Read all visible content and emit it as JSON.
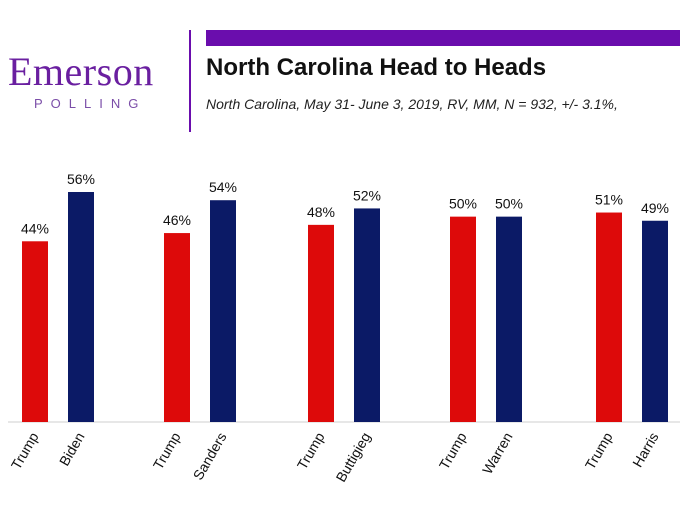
{
  "logo": {
    "word": "Emerson",
    "sub": "POLLING"
  },
  "header": {
    "title": "North Carolina Head to Heads",
    "subtitle": "North Carolina, May 31- June 3, 2019, RV, MM, N = 932,  +/- 3.1%,"
  },
  "colors": {
    "accent": "#6a0dad",
    "trump": "#dd0a0a",
    "dem": "#0b1a66"
  },
  "chart_data": {
    "type": "bar",
    "ylim": [
      0,
      60
    ],
    "grid": false,
    "groups": [
      {
        "bars": [
          {
            "label": "Trump",
            "value": 44,
            "text": "44%",
            "party": "trump"
          },
          {
            "label": "Biden",
            "value": 56,
            "text": "56%",
            "party": "dem"
          }
        ]
      },
      {
        "bars": [
          {
            "label": "Trump",
            "value": 46,
            "text": "46%",
            "party": "trump"
          },
          {
            "label": "Sanders",
            "value": 54,
            "text": "54%",
            "party": "dem"
          }
        ]
      },
      {
        "bars": [
          {
            "label": "Trump",
            "value": 48,
            "text": "48%",
            "party": "trump"
          },
          {
            "label": "Buttigieg",
            "value": 52,
            "text": "52%",
            "party": "dem"
          }
        ]
      },
      {
        "bars": [
          {
            "label": "Trump",
            "value": 50,
            "text": "50%",
            "party": "trump"
          },
          {
            "label": "Warren",
            "value": 50,
            "text": "50%",
            "party": "dem"
          }
        ]
      },
      {
        "bars": [
          {
            "label": "Trump",
            "value": 51,
            "text": "51%",
            "party": "trump"
          },
          {
            "label": "Harris",
            "value": 49,
            "text": "49%",
            "party": "dem"
          }
        ]
      }
    ]
  }
}
